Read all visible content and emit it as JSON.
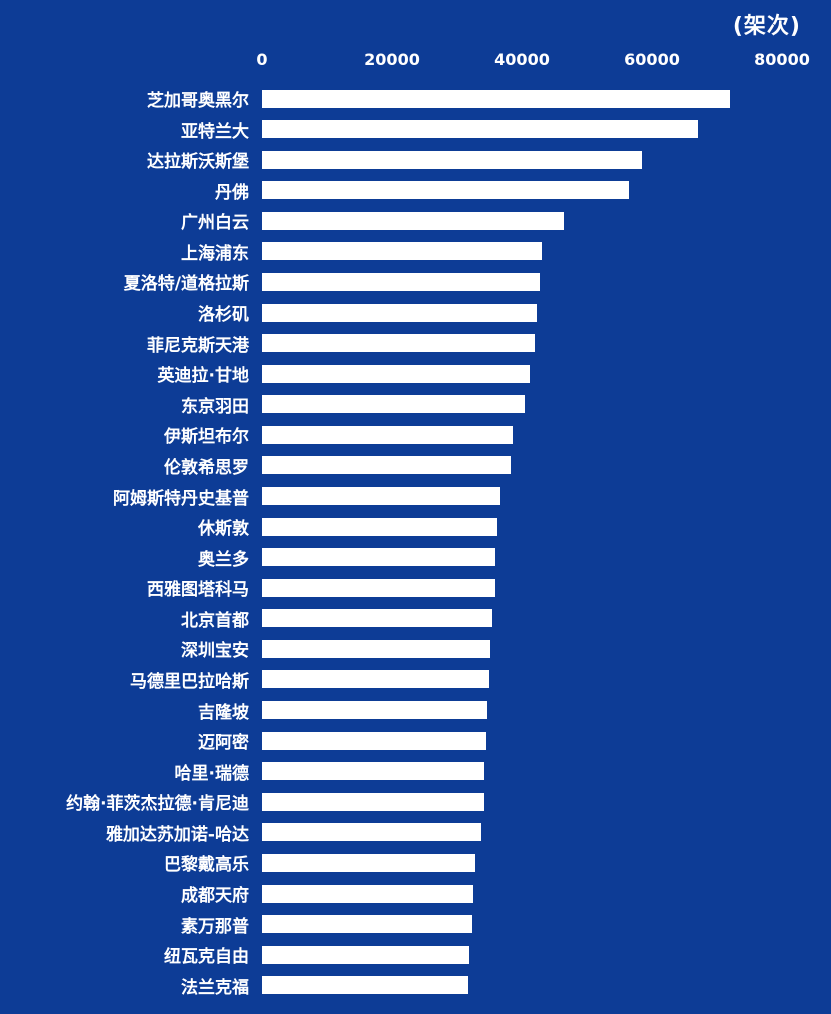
{
  "chart_data": {
    "type": "bar",
    "orientation": "horizontal",
    "title": "",
    "unit_label": "(架次)",
    "xlabel": "",
    "ylabel": "",
    "xticks": [
      0,
      20000,
      40000,
      60000,
      80000
    ],
    "xtick_labels": [
      "0",
      "20000",
      "40000",
      "60000",
      "80000"
    ],
    "xlim": [
      0,
      80000
    ],
    "grid": false,
    "legend": false,
    "colors": {
      "background": "#0D3C96",
      "bar": "#FFFFFF",
      "text": "#FFFFFF"
    },
    "categories": [
      "芝加哥奥黑尔",
      "亚特兰大",
      "达拉斯沃斯堡",
      "丹佛",
      "广州白云",
      "上海浦东",
      "夏洛特/道格拉斯",
      "洛杉矶",
      "菲尼克斯天港",
      "英迪拉·甘地",
      "东京羽田",
      "伊斯坦布尔",
      "伦敦希思罗",
      "阿姆斯特丹史基普",
      "休斯敦",
      "奥兰多",
      "西雅图塔科马",
      "北京首都",
      "深圳宝安",
      "马德里巴拉哈斯",
      "吉隆坡",
      "迈阿密",
      "哈里·瑞德",
      "约翰·菲茨杰拉德·肯尼迪",
      "雅加达苏加诺-哈达",
      "巴黎戴高乐",
      "成都天府",
      "素万那普",
      "纽瓦克自由",
      "法兰克福"
    ],
    "values": [
      72000,
      67000,
      58500,
      56500,
      46500,
      43000,
      42800,
      42300,
      42000,
      41200,
      40400,
      38600,
      38300,
      36600,
      36100,
      35800,
      35800,
      35400,
      35100,
      34900,
      34600,
      34400,
      34100,
      34100,
      33700,
      32800,
      32400,
      32300,
      31800,
      31700
    ]
  }
}
